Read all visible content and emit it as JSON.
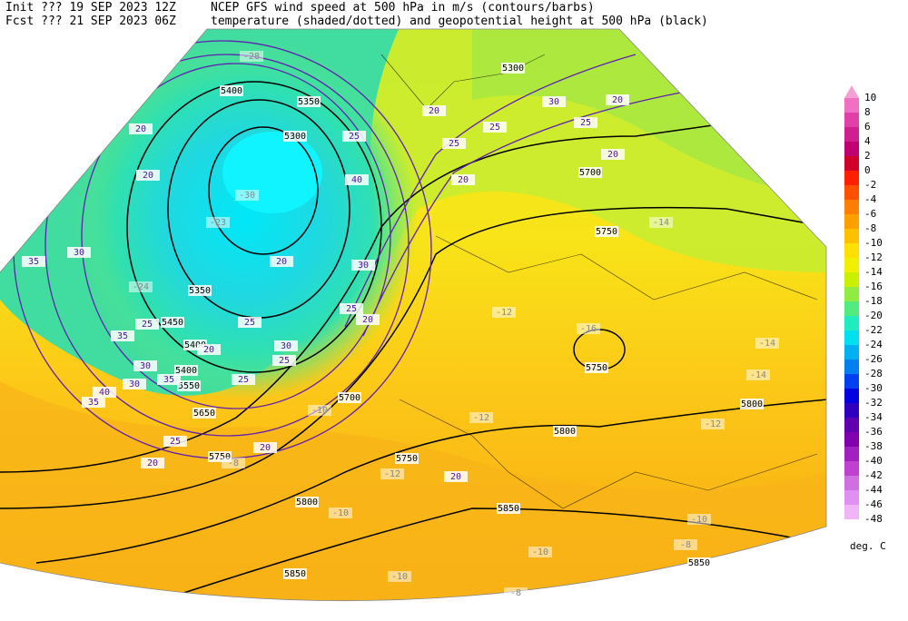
{
  "header": {
    "init": "Init  ??? 19 SEP 2023 12Z",
    "fcst": "Fcst ??? 21 SEP 2023 06Z",
    "title1": "NCEP GFS wind speed at 500 hPa in m/s (contours/barbs)",
    "title2": "temperature (shaded/dotted) and geopotential height at 500 hPa (black)"
  },
  "legend": {
    "units": "deg. C",
    "labels": [
      10,
      8,
      6,
      4,
      2,
      0,
      -2,
      -4,
      -6,
      -8,
      -10,
      -12,
      -14,
      -16,
      -18,
      -20,
      -22,
      -24,
      -26,
      -28,
      -30,
      -32,
      -34,
      -36,
      -38,
      -40,
      -42,
      -44,
      -46,
      -48
    ],
    "colors": [
      "#f4a0d4",
      "#f070c4",
      "#e040a8",
      "#d02090",
      "#c00070",
      "#d00028",
      "#ff2000",
      "#ff5000",
      "#ff8000",
      "#ffa000",
      "#ffc000",
      "#ffe000",
      "#f0f000",
      "#c8f000",
      "#90ec40",
      "#50ec80",
      "#20ecc0",
      "#00e0f0",
      "#00b0f0",
      "#0080f0",
      "#0040f0",
      "#0000e0",
      "#3000c0",
      "#6000b0",
      "#8000b0",
      "#a020c0",
      "#c040d0",
      "#d070e0",
      "#e090f0",
      "#f0b4f8"
    ]
  },
  "map": {
    "height_labels": [
      "5400",
      "5350",
      "5300",
      "5350",
      "5450",
      "5400",
      "5400",
      "5550",
      "5650",
      "5750",
      "5700",
      "5750",
      "5750",
      "5700",
      "5800",
      "5800",
      "5750",
      "5800",
      "5850",
      "5850",
      "5850",
      "5300"
    ],
    "wind_labels": [
      "20",
      "20",
      "30",
      "35",
      "35",
      "30",
      "30",
      "35",
      "40",
      "35",
      "25",
      "20",
      "25",
      "20",
      "30",
      "25",
      "25",
      "20",
      "25",
      "20",
      "20",
      "25",
      "30",
      "40",
      "25",
      "20",
      "20",
      "25",
      "30",
      "20",
      "25",
      "20",
      "25",
      "20"
    ],
    "temp_labels": [
      "-28",
      "-30",
      "-23",
      "-24",
      "-14",
      "-12",
      "-14",
      "-14",
      "-12",
      "-12",
      "-12",
      "-10",
      "-10",
      "-10",
      "-10",
      "-8",
      "-8",
      "-8",
      "-10",
      "-16"
    ]
  }
}
